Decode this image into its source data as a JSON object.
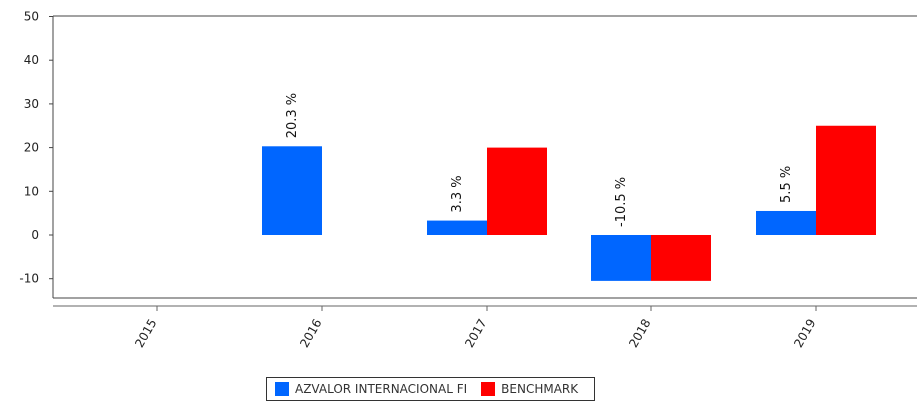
{
  "chart_data": {
    "type": "bar",
    "categories": [
      "2015",
      "2016",
      "2017",
      "2018",
      "2019"
    ],
    "series": [
      {
        "name": "AZVALOR INTERNACIONAL FI",
        "color": "#0066ff",
        "values": [
          null,
          20.3,
          3.3,
          -10.5,
          5.5
        ],
        "data_labels": [
          "",
          "20.3 %",
          "3.3 %",
          "-10.5 %",
          "5.5 %"
        ]
      },
      {
        "name": "BENCHMARK",
        "color": "#ff0000",
        "values": [
          null,
          null,
          20.0,
          -10.5,
          25.0
        ]
      }
    ],
    "ylim": [
      -14,
      50
    ],
    "yticks": [
      -10,
      0,
      10,
      20,
      30,
      40,
      50
    ],
    "grid": false,
    "legend_position": "bottom-center"
  }
}
